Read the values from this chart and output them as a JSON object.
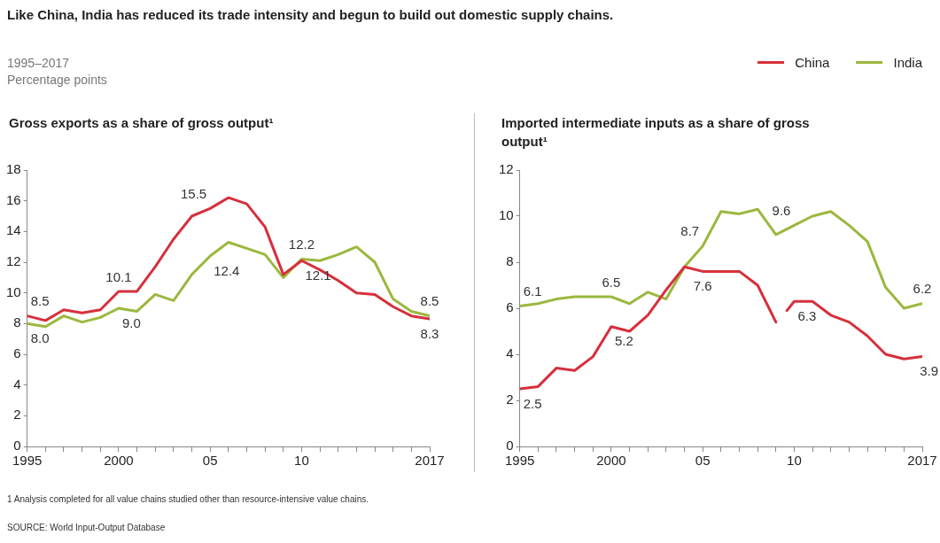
{
  "chart_data": [
    {
      "type": "other",
      "title": "Like China, India has reduced its trade intensity and begun to build out domestic supply chains.",
      "subtitle": "1995–2017\nPercentage points",
      "annotations": [
        "1  Analysis completed for all value chains studied other than resource-intensive value chains.",
        "SOURCE: World Input-Output Database"
      ]
    },
    {
      "type": "line",
      "title": "Gross exports as a share of gross output¹",
      "x": [
        1995,
        1996,
        1997,
        1998,
        1999,
        2000,
        2001,
        2002,
        2003,
        2004,
        2005,
        2006,
        2007,
        2008,
        2009,
        2010,
        2011,
        2012,
        2013,
        2014,
        2015,
        2016,
        2017
      ],
      "series": [
        {
          "color": "#d6303c",
          "values": [
            8.5,
            8.2,
            8.9,
            8.7,
            8.9,
            10.1,
            10.1,
            11.7,
            13.5,
            15.0,
            15.5,
            16.2,
            15.8,
            14.3,
            11.2,
            12.1,
            11.5,
            10.8,
            10.0,
            9.9,
            9.1,
            8.5,
            8.3
          ],
          "value_labels": [
            "8.5",
            null,
            null,
            null,
            null,
            "10.1",
            null,
            null,
            null,
            null,
            "15.5",
            null,
            null,
            null,
            null,
            "12.1",
            null,
            null,
            null,
            null,
            null,
            null,
            "8.3"
          ]
        },
        {
          "color": "#9bb83e",
          "values": [
            8.0,
            7.8,
            8.5,
            8.1,
            8.4,
            9.0,
            8.8,
            9.9,
            9.5,
            11.2,
            12.4,
            13.3,
            12.9,
            12.5,
            11.0,
            12.2,
            12.1,
            12.5,
            13.0,
            12.0,
            9.6,
            8.8,
            8.5
          ],
          "value_labels": [
            "8.0",
            null,
            null,
            null,
            null,
            "9.0",
            null,
            null,
            null,
            null,
            "12.4",
            null,
            null,
            null,
            null,
            "12.2",
            null,
            null,
            null,
            null,
            null,
            null,
            "8.5"
          ]
        }
      ],
      "xlim": [
        1995,
        2017
      ],
      "xticks": [
        1995,
        {
          "value": 1996,
          "label": null
        },
        {
          "value": 1997,
          "label": null
        },
        {
          "value": 1998,
          "label": null
        },
        {
          "value": 1999,
          "label": null
        },
        2000,
        {
          "value": 2001,
          "label": null
        },
        {
          "value": 2002,
          "label": null
        },
        {
          "value": 2003,
          "label": null
        },
        {
          "value": 2004,
          "label": null
        },
        {
          "value": 2005,
          "label": "05"
        },
        {
          "value": 2006,
          "label": null
        },
        {
          "value": 2007,
          "label": null
        },
        {
          "value": 2008,
          "label": null
        },
        {
          "value": 2009,
          "label": null
        },
        {
          "value": 2010,
          "label": "10"
        },
        {
          "value": 2011,
          "label": null
        },
        {
          "value": 2012,
          "label": null
        },
        {
          "value": 2013,
          "label": null
        },
        {
          "value": 2014,
          "label": null
        },
        {
          "value": 2015,
          "label": null
        },
        {
          "value": 2016,
          "label": null
        },
        2017
      ],
      "ylim": [
        0,
        18
      ],
      "yticks": [
        0,
        2,
        4,
        6,
        8,
        10,
        12,
        14,
        16,
        18
      ],
      "grid": false
    },
    {
      "type": "line",
      "title": "Imported intermediate inputs as a share of gross output¹",
      "x": [
        1995,
        1996,
        1997,
        1998,
        1999,
        2000,
        2001,
        2002,
        2003,
        2004,
        2005,
        2006,
        2007,
        2008,
        2009,
        2010,
        2011,
        2012,
        2013,
        2014,
        2015,
        2016,
        2017
      ],
      "series": [
        {
          "name": "China",
          "color": "#d6303c",
          "x": [
            1995,
            1996,
            1997,
            1998,
            1999,
            2000,
            2001,
            2002,
            2003,
            2004,
            2005,
            2006,
            2007,
            2008,
            2009,
            2009.5,
            2009.6,
            2010,
            2011,
            2012,
            2013,
            2014,
            2015,
            2016,
            2017
          ],
          "values": [
            2.5,
            2.6,
            3.4,
            3.3,
            3.9,
            5.2,
            5.0,
            5.7,
            6.8,
            7.8,
            7.6,
            7.6,
            7.6,
            7.0,
            5.4,
            null,
            5.9,
            6.3,
            6.3,
            5.7,
            5.4,
            4.8,
            4.0,
            3.8,
            3.9
          ],
          "value_labels": [
            "2.5",
            null,
            null,
            null,
            null,
            "5.2",
            null,
            null,
            null,
            null,
            "7.6",
            null,
            null,
            null,
            null,
            null,
            null,
            "6.3",
            null,
            null,
            null,
            null,
            null,
            null,
            "3.9"
          ]
        },
        {
          "name": "India",
          "color": "#9bb83e",
          "values": [
            6.1,
            6.2,
            6.4,
            6.5,
            6.5,
            6.5,
            6.2,
            6.7,
            6.4,
            7.8,
            8.7,
            10.2,
            10.1,
            10.3,
            9.2,
            9.6,
            10.0,
            10.2,
            9.6,
            8.9,
            6.9,
            6.0,
            6.2
          ],
          "value_labels": [
            "6.1",
            null,
            null,
            null,
            null,
            "6.5",
            null,
            null,
            null,
            null,
            "8.7",
            null,
            null,
            null,
            null,
            "9.6",
            null,
            null,
            null,
            null,
            null,
            null,
            "6.2"
          ]
        }
      ],
      "xlim": [
        1995,
        2017
      ],
      "xticks": [
        1995,
        {
          "value": 1996,
          "label": null
        },
        {
          "value": 1997,
          "label": null
        },
        {
          "value": 1998,
          "label": null
        },
        {
          "value": 1999,
          "label": null
        },
        2000,
        {
          "value": 2001,
          "label": null
        },
        {
          "value": 2002,
          "label": null
        },
        {
          "value": 2003,
          "label": null
        },
        {
          "value": 2004,
          "label": null
        },
        {
          "value": 2005,
          "label": "05"
        },
        {
          "value": 2006,
          "label": null
        },
        {
          "value": 2007,
          "label": null
        },
        {
          "value": 2008,
          "label": null
        },
        {
          "value": 2009,
          "label": null
        },
        {
          "value": 2010,
          "label": "10"
        },
        {
          "value": 2011,
          "label": null
        },
        {
          "value": 2012,
          "label": null
        },
        {
          "value": 2013,
          "label": null
        },
        {
          "value": 2014,
          "label": null
        },
        {
          "value": 2015,
          "label": null
        },
        {
          "value": 2016,
          "label": null
        },
        2017
      ],
      "ylim": [
        0,
        12
      ],
      "yticks": [
        0,
        2,
        4,
        6,
        8,
        10,
        12
      ],
      "grid": false,
      "legend": "top right"
    }
  ]
}
